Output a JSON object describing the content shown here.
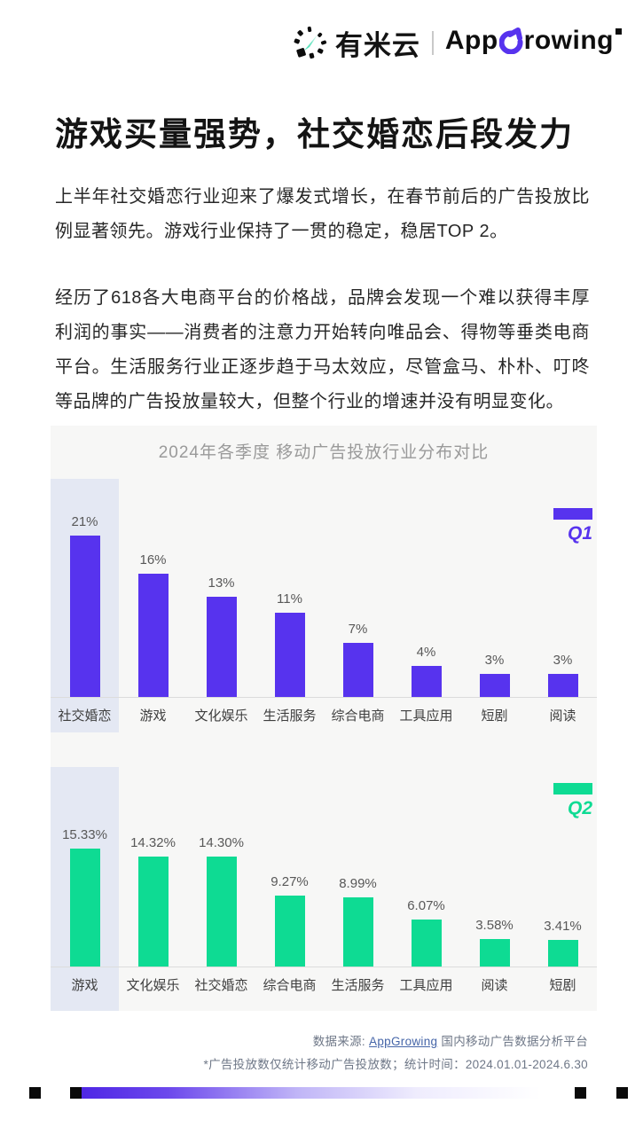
{
  "header": {
    "brand_left": "有米云",
    "brand_right_prefix": "App",
    "brand_right_suffix": "rowing"
  },
  "title": "游戏买量强势，社交婚恋后段发力",
  "paragraphs": {
    "p1": "上半年社交婚恋行业迎来了爆发式增长，在春节前后的广告投放比例显著领先。游戏行业保持了一贯的稳定，稳居TOP 2。",
    "p2": "经历了618各大电商平台的价格战，品牌会发现一个难以获得丰厚利润的事实——消费者的注意力开始转向唯品会、得物等垂类电商平台。生活服务行业正逐步趋于马太效应，尽管盒马、朴朴、叮咚等品牌的广告投放量较大，但整个行业的增速并没有明显变化。"
  },
  "chart_section": {
    "title": "2024年各季度 移动广告投放行业分布对比"
  },
  "chart_data": [
    {
      "type": "bar",
      "name": "Q1",
      "legend": "Q1",
      "categories": [
        "社交婚恋",
        "游戏",
        "文化娱乐",
        "生活服务",
        "综合电商",
        "工具应用",
        "短剧",
        "阅读"
      ],
      "values": [
        21,
        16,
        13,
        11,
        7,
        4,
        3,
        3
      ],
      "value_labels": [
        "21%",
        "16%",
        "13%",
        "11%",
        "7%",
        "4%",
        "3%",
        "3%"
      ],
      "unit": "%",
      "ylim": [
        0,
        23
      ],
      "grid": false,
      "legend_position": "top-right",
      "bar_color": "#5733ee",
      "highlight_color": "#e4e8f3",
      "highlighted_category": "社交婚恋"
    },
    {
      "type": "bar",
      "name": "Q2",
      "legend": "Q2",
      "categories": [
        "游戏",
        "文化娱乐",
        "社交婚恋",
        "综合电商",
        "生活服务",
        "工具应用",
        "阅读",
        "短剧"
      ],
      "values": [
        15.33,
        14.32,
        14.3,
        9.27,
        8.99,
        6.07,
        3.58,
        3.41
      ],
      "value_labels": [
        "15.33%",
        "14.32%",
        "14.30%",
        "9.27%",
        "8.99%",
        "6.07%",
        "3.58%",
        "3.41%"
      ],
      "unit": "%",
      "ylim": [
        0,
        23
      ],
      "grid": false,
      "legend_position": "top-right",
      "bar_color": "#0edb93",
      "highlight_color": "#e4e8f3",
      "highlighted_category": "游戏"
    }
  ],
  "footer": {
    "source_prefix": "数据来源: ",
    "source_link": "AppGrowing",
    "source_suffix": " 国内移动广告数据分析平台",
    "note": "*广告投放数仅统计移动广告投放数；统计时间：2024.01.01-2024.6.30"
  },
  "colors": {
    "accent_purple": "#5733ee",
    "accent_green": "#0edb93",
    "highlight_column": "#e4e8f3",
    "panel_background": "#f7f7f6"
  }
}
